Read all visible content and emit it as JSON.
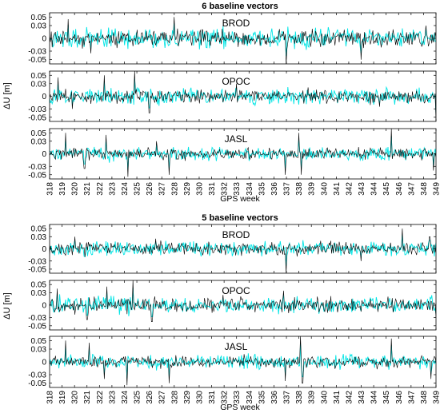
{
  "colors": {
    "primary_series": "#000000",
    "secondary_series": "#00e5e5",
    "axis": "#000000",
    "background": "#ffffff"
  },
  "chart_data": [
    {
      "type": "line",
      "title": "6 baseline vectors",
      "xlabel": "GPS week",
      "ylabel": "ΔU [m]",
      "xlim": [
        318,
        349
      ],
      "x_tick_labels": [
        "318",
        "319",
        "320",
        "321",
        "322",
        "323",
        "324",
        "325",
        "326",
        "327",
        "328",
        "329",
        "330",
        "331",
        "332",
        "333",
        "334",
        "335",
        "336",
        "337",
        "338",
        "339",
        "340",
        "341",
        "342",
        "343",
        "344",
        "345",
        "346",
        "347",
        "348",
        "349"
      ],
      "ylim": [
        -0.06,
        0.06
      ],
      "y_tick_labels": [
        "0.05",
        "0.03",
        "0",
        "-0.03",
        "-0.05"
      ],
      "y_ticks": [
        0.05,
        0.03,
        0,
        -0.03,
        -0.05
      ],
      "grid": false,
      "note": "Dense daily residual time series; two overlaid traces (black and cyan) per station",
      "panels": [
        {
          "station": "BROD",
          "amplitude": 0.015,
          "spikes": [
            [
              319.5,
              0.045
            ],
            [
              321.3,
              -0.035
            ],
            [
              328.0,
              0.05
            ],
            [
              337.0,
              -0.06
            ],
            [
              343.0,
              -0.05
            ],
            [
              348.2,
              0.03
            ]
          ]
        },
        {
          "station": "OPOC",
          "amplitude": 0.012,
          "spikes": [
            [
              318.7,
              0.045
            ],
            [
              319.8,
              -0.03
            ],
            [
              322.4,
              0.05
            ],
            [
              324.8,
              0.06
            ],
            [
              326.0,
              -0.04
            ],
            [
              333.0,
              0.03
            ],
            [
              344.5,
              -0.025
            ],
            [
              349.0,
              -0.06
            ]
          ]
        },
        {
          "station": "JASL",
          "amplitude": 0.01,
          "spikes": [
            [
              319.3,
              0.05
            ],
            [
              320.8,
              -0.035
            ],
            [
              322.5,
              0.045
            ],
            [
              324.3,
              -0.055
            ],
            [
              326.6,
              0.03
            ],
            [
              327.6,
              -0.05
            ],
            [
              336.9,
              -0.05
            ],
            [
              338.0,
              0.05
            ],
            [
              338.2,
              -0.05
            ],
            [
              345.4,
              0.06
            ],
            [
              348.8,
              -0.04
            ]
          ]
        }
      ]
    },
    {
      "type": "line",
      "title": "5 baseline vectors",
      "xlabel": "GPS week",
      "ylabel": "ΔU [m]",
      "xlim": [
        318,
        349
      ],
      "x_tick_labels": [
        "318",
        "319",
        "320",
        "321",
        "322",
        "323",
        "324",
        "325",
        "326",
        "327",
        "328",
        "329",
        "330",
        "331",
        "332",
        "333",
        "334",
        "335",
        "336",
        "337",
        "338",
        "339",
        "340",
        "341",
        "342",
        "343",
        "344",
        "345",
        "346",
        "347",
        "348",
        "349"
      ],
      "ylim": [
        -0.06,
        0.06
      ],
      "y_tick_labels": [
        "0.05",
        "0.03",
        "0",
        "-0.03",
        "-0.05"
      ],
      "y_ticks": [
        0.05,
        0.03,
        0,
        -0.03,
        -0.05
      ],
      "grid": false,
      "note": "Dense daily residual time series; two overlaid traces (black and cyan) per station",
      "panels": [
        {
          "station": "BROD",
          "amplitude": 0.012,
          "spikes": [
            [
              320.0,
              0.03
            ],
            [
              326.5,
              0.025
            ],
            [
              337.0,
              -0.06
            ],
            [
              343.0,
              -0.03
            ],
            [
              346.3,
              0.05
            ],
            [
              348.5,
              0.03
            ]
          ]
        },
        {
          "station": "OPOC",
          "amplitude": 0.013,
          "spikes": [
            [
              318.6,
              0.04
            ],
            [
              321.0,
              -0.035
            ],
            [
              322.6,
              0.045
            ],
            [
              324.7,
              0.06
            ],
            [
              326.2,
              -0.04
            ],
            [
              331.9,
              0.025
            ],
            [
              336.8,
              0.035
            ],
            [
              349.0,
              -0.03
            ]
          ]
        },
        {
          "station": "JASL",
          "amplitude": 0.01,
          "spikes": [
            [
              319.3,
              0.05
            ],
            [
              321.2,
              0.045
            ],
            [
              322.4,
              -0.04
            ],
            [
              324.2,
              -0.055
            ],
            [
              327.6,
              -0.05
            ],
            [
              336.9,
              -0.045
            ],
            [
              338.1,
              0.06
            ],
            [
              338.3,
              -0.05
            ],
            [
              345.4,
              0.055
            ],
            [
              348.6,
              -0.04
            ]
          ]
        }
      ]
    }
  ]
}
